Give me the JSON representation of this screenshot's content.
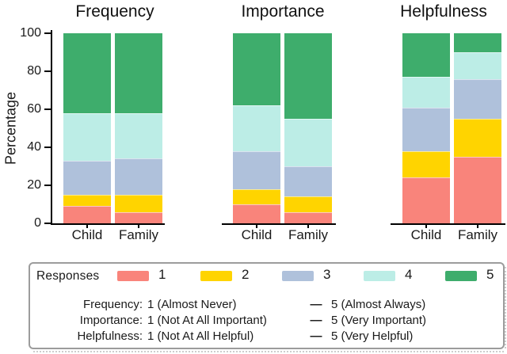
{
  "figure": {
    "y_axis": {
      "label": "Percentage",
      "ticks": [
        0,
        20,
        40,
        60,
        80,
        100
      ],
      "max": 100
    }
  },
  "chart_data": [
    {
      "type": "bar",
      "subtype": "stacked",
      "title": "Frequency",
      "categories": [
        "Child",
        "Family"
      ],
      "ylabel": "Percentage",
      "ylim": [
        0,
        100
      ],
      "grid": false,
      "series": [
        {
          "name": "1",
          "values": [
            9,
            6
          ]
        },
        {
          "name": "2",
          "values": [
            6,
            9
          ]
        },
        {
          "name": "3",
          "values": [
            18,
            19
          ]
        },
        {
          "name": "4",
          "values": [
            25,
            24
          ]
        },
        {
          "name": "5",
          "values": [
            42,
            42
          ]
        }
      ]
    },
    {
      "type": "bar",
      "subtype": "stacked",
      "title": "Importance",
      "categories": [
        "Child",
        "Family"
      ],
      "ylabel": "Percentage",
      "ylim": [
        0,
        100
      ],
      "grid": false,
      "series": [
        {
          "name": "1",
          "values": [
            10,
            6
          ]
        },
        {
          "name": "2",
          "values": [
            8,
            8
          ]
        },
        {
          "name": "3",
          "values": [
            20,
            16
          ]
        },
        {
          "name": "4",
          "values": [
            24,
            25
          ]
        },
        {
          "name": "5",
          "values": [
            38,
            45
          ]
        }
      ]
    },
    {
      "type": "bar",
      "subtype": "stacked",
      "title": "Helpfulness",
      "categories": [
        "Child",
        "Family"
      ],
      "ylabel": "Percentage",
      "ylim": [
        0,
        100
      ],
      "grid": false,
      "series": [
        {
          "name": "1",
          "values": [
            24,
            35
          ]
        },
        {
          "name": "2",
          "values": [
            14,
            20
          ]
        },
        {
          "name": "3",
          "values": [
            23,
            21
          ]
        },
        {
          "name": "4",
          "values": [
            16,
            14
          ]
        },
        {
          "name": "5",
          "values": [
            23,
            10
          ]
        }
      ]
    }
  ],
  "legend": {
    "title": "Responses",
    "items": [
      {
        "label": "1",
        "color": "#F9847B"
      },
      {
        "label": "2",
        "color": "#FFD400"
      },
      {
        "label": "3",
        "color": "#AFC1DB"
      },
      {
        "label": "4",
        "color": "#BCEDE6"
      },
      {
        "label": "5",
        "color": "#3EAD6C"
      }
    ],
    "scales": [
      {
        "name": "Frequency:",
        "low": "1 (Almost Never)",
        "dash": "—",
        "high": "5 (Almost Always)"
      },
      {
        "name": "Importance:",
        "low": "1 (Not At All Important)",
        "dash": "—",
        "high": "5 (Very Important)"
      },
      {
        "name": "Helpfulness:",
        "low": "1 (Not At All Helpful)",
        "dash": "—",
        "high": "5 (Very Helpful)"
      }
    ]
  }
}
